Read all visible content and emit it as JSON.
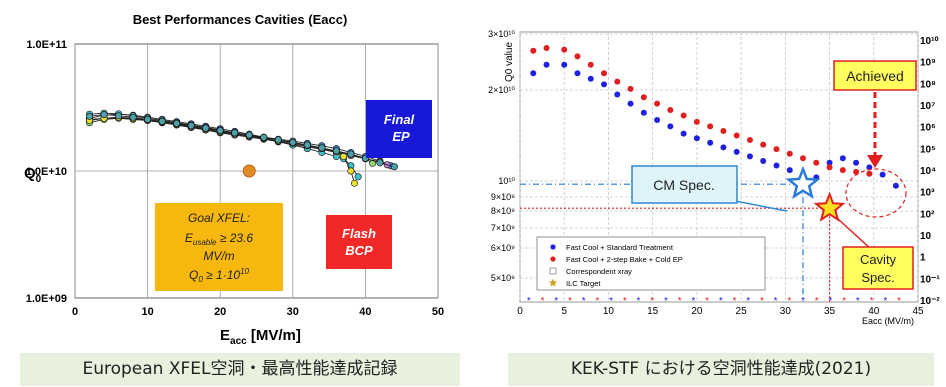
{
  "chart_data": [
    {
      "type": "scatter",
      "title": "Best Performances Cavities (Eacc)",
      "ylabel": "Q0",
      "xlabel": "Eacc [MV/m]",
      "xlim": [
        0,
        50
      ],
      "ylim": [
        1000000000.0,
        100000000000.0
      ],
      "yscale": "log",
      "grid": true,
      "x_ticks": [
        "0",
        "10",
        "20",
        "30",
        "40",
        "50"
      ],
      "y_ticks": [
        "1.0E+09",
        "1.0E+10",
        "1.0E+11"
      ],
      "series": [
        {
          "color": "#3a7fd0",
          "points": [
            [
              2,
              26000000000.0
            ],
            [
              4,
              27500000000.0
            ],
            [
              6,
              28000000000.0
            ],
            [
              8,
              27500000000.0
            ],
            [
              10,
              26500000000.0
            ],
            [
              12,
              25500000000.0
            ],
            [
              14,
              24500000000.0
            ],
            [
              16,
              23500000000.0
            ],
            [
              18,
              22500000000.0
            ],
            [
              20,
              21500000000.0
            ],
            [
              22,
              20500000000.0
            ],
            [
              24,
              19500000000.0
            ],
            [
              26,
              18500000000.0
            ],
            [
              28,
              17800000000.0
            ],
            [
              30,
              17200000000.0
            ],
            [
              32,
              16500000000.0
            ],
            [
              34,
              15800000000.0
            ],
            [
              36,
              15000000000.0
            ],
            [
              38,
              14000000000.0
            ],
            [
              40,
              13000000000.0
            ],
            [
              42,
              12000000000.0
            ],
            [
              43.5,
              11000000000.0
            ]
          ]
        },
        {
          "color": "#c080d8",
          "points": [
            [
              2,
              25500000000.0
            ],
            [
              4,
              26000000000.0
            ],
            [
              6,
              26200000000.0
            ],
            [
              8,
              25800000000.0
            ],
            [
              10,
              25000000000.0
            ],
            [
              12,
              24000000000.0
            ],
            [
              14,
              23000000000.0
            ],
            [
              16,
              22000000000.0
            ],
            [
              18,
              21000000000.0
            ],
            [
              20,
              20000000000.0
            ],
            [
              22,
              19200000000.0
            ],
            [
              24,
              18500000000.0
            ],
            [
              26,
              17800000000.0
            ],
            [
              28,
              17000000000.0
            ],
            [
              30,
              16200000000.0
            ],
            [
              32,
              15500000000.0
            ],
            [
              34,
              14800000000.0
            ],
            [
              36,
              14000000000.0
            ],
            [
              38,
              13200000000.0
            ],
            [
              40,
              12500000000.0
            ],
            [
              42,
              11800000000.0
            ],
            [
              43,
              11200000000.0
            ]
          ]
        },
        {
          "color": "#40c0c8",
          "points": [
            [
              2,
              28000000000.0
            ],
            [
              4,
              28500000000.0
            ],
            [
              6,
              28200000000.0
            ],
            [
              8,
              27200000000.0
            ],
            [
              10,
              26000000000.0
            ],
            [
              12,
              25000000000.0
            ],
            [
              14,
              24000000000.0
            ],
            [
              16,
              23000000000.0
            ],
            [
              18,
              22000000000.0
            ],
            [
              20,
              21000000000.0
            ],
            [
              22,
              20000000000.0
            ],
            [
              24,
              19000000000.0
            ],
            [
              26,
              18000000000.0
            ],
            [
              28,
              17000000000.0
            ],
            [
              30,
              16000000000.0
            ],
            [
              32,
              15000000000.0
            ],
            [
              34,
              14000000000.0
            ],
            [
              36,
              13000000000.0
            ],
            [
              37,
              12500000000.0
            ],
            [
              38,
              11000000000.0
            ],
            [
              39,
              9000000000.0
            ]
          ]
        },
        {
          "color": "#90d870",
          "points": [
            [
              2,
              24000000000.0
            ],
            [
              4,
              25500000000.0
            ],
            [
              6,
              26000000000.0
            ],
            [
              8,
              25500000000.0
            ],
            [
              10,
              25000000000.0
            ],
            [
              12,
              24200000000.0
            ],
            [
              14,
              23200000000.0
            ],
            [
              16,
              22200000000.0
            ],
            [
              18,
              21200000000.0
            ],
            [
              20,
              20200000000.0
            ],
            [
              22,
              19500000000.0
            ],
            [
              24,
              18800000000.0
            ],
            [
              26,
              18000000000.0
            ],
            [
              28,
              17200000000.0
            ],
            [
              30,
              16500000000.0
            ],
            [
              32,
              15800000000.0
            ],
            [
              34,
              15000000000.0
            ],
            [
              36,
              14200000000.0
            ],
            [
              38,
              13500000000.0
            ],
            [
              40,
              12500000000.0
            ],
            [
              41,
              11500000000.0
            ]
          ]
        },
        {
          "color": "#e8e030",
          "points": [
            [
              2,
              25000000000.0
            ],
            [
              4,
              26000000000.0
            ],
            [
              6,
              26500000000.0
            ],
            [
              8,
              26000000000.0
            ],
            [
              10,
              25200000000.0
            ],
            [
              12,
              24500000000.0
            ],
            [
              14,
              23500000000.0
            ],
            [
              16,
              22500000000.0
            ],
            [
              18,
              21500000000.0
            ],
            [
              20,
              20500000000.0
            ],
            [
              22,
              19800000000.0
            ],
            [
              24,
              19000000000.0
            ],
            [
              26,
              18200000000.0
            ],
            [
              28,
              17500000000.0
            ],
            [
              30,
              16800000000.0
            ],
            [
              32,
              16000000000.0
            ],
            [
              34,
              15200000000.0
            ],
            [
              36,
              14200000000.0
            ],
            [
              37,
              13000000000.0
            ],
            [
              38,
              10000000000.0
            ],
            [
              38.5,
              8000000000.0
            ]
          ]
        },
        {
          "color": "#4fa0a8",
          "points": [
            [
              2,
              27000000000.0
            ],
            [
              4,
              27800000000.0
            ],
            [
              6,
              27200000000.0
            ],
            [
              8,
              26500000000.0
            ],
            [
              10,
              25500000000.0
            ],
            [
              12,
              24600000000.0
            ],
            [
              14,
              23700000000.0
            ],
            [
              16,
              22800000000.0
            ],
            [
              18,
              21800000000.0
            ],
            [
              20,
              20800000000.0
            ],
            [
              22,
              20000000000.0
            ],
            [
              24,
              19200000000.0
            ],
            [
              26,
              18400000000.0
            ],
            [
              28,
              17600000000.0
            ],
            [
              30,
              16800000000.0
            ],
            [
              32,
              16000000000.0
            ],
            [
              34,
              15200000000.0
            ],
            [
              36,
              14400000000.0
            ],
            [
              38,
              13600000000.0
            ],
            [
              40,
              12600000000.0
            ],
            [
              42,
              11600000000.0
            ],
            [
              44,
              10800000000.0
            ]
          ]
        }
      ],
      "goal_point": {
        "x": 24,
        "y": 10000000000.0,
        "color": "#e08a28"
      },
      "annotations": {
        "final_ep": [
          "Final",
          "EP"
        ],
        "flash_bcp": [
          "Flash",
          "BCP"
        ],
        "goal": {
          "line1": "Goal XFEL:",
          "line2_main": "E",
          "line2_sub": "usable",
          "line2_rest": " ≥ 23.6",
          "line3": "MV/m",
          "line4_main": "Q",
          "line4_sub": "0",
          "line4_rest": " ≥ 1·10",
          "line4_sup": "10"
        }
      },
      "axis_label_left": {
        "main": "Q",
        "sub": "0"
      },
      "axis_label_bottom": {
        "main": "E",
        "sub": "acc",
        "rest": " [MV/m]"
      }
    },
    {
      "type": "scatter",
      "ylabel": "Q0 value",
      "xlabel": "Eacc (MV/m)",
      "xlim": [
        0,
        45
      ],
      "ylim": [
        4000000000.0,
        30000000000.0
      ],
      "grid": true,
      "x_ticks": [
        "0",
        "5",
        "10",
        "15",
        "20",
        "25",
        "30",
        "35",
        "40",
        "45"
      ],
      "y_ticks": [
        "3×10¹⁰",
        "2×10¹⁰",
        "10¹⁰",
        "9×10⁹",
        "8×10⁹",
        "7×10⁹",
        "6×10⁹",
        "5×10⁹"
      ],
      "y_ticks_values": [
        30000000000.0,
        20000000000.0,
        10000000000.0,
        9000000000.0,
        8000000000.0,
        7000000000.0,
        6000000000.0,
        5000000000.0
      ],
      "right_axis_ticks": [
        "10¹⁰",
        "10⁹",
        "10⁸",
        "10⁷",
        "10⁶",
        "10⁵",
        "10⁴",
        "10³",
        "10²",
        "10",
        "1",
        "10⁻¹",
        "10⁻²"
      ],
      "series": [
        {
          "name": "Fast Cool + Standard Treatment",
          "color": "#2020e0",
          "points": [
            [
              1.5,
              23000000000.0
            ],
            [
              3,
              24500000000.0
            ],
            [
              5,
              24500000000.0
            ],
            [
              6.5,
              23000000000.0
            ],
            [
              8,
              22000000000.0
            ],
            [
              9.5,
              21000000000.0
            ],
            [
              11,
              19500000000.0
            ],
            [
              12.5,
              18500000000.0
            ],
            [
              14,
              17500000000.0
            ],
            [
              15.5,
              16700000000.0
            ],
            [
              17,
              16000000000.0
            ],
            [
              18.5,
              15200000000.0
            ],
            [
              20,
              14700000000.0
            ],
            [
              21.5,
              14200000000.0
            ],
            [
              23,
              13700000000.0
            ],
            [
              24.5,
              13200000000.0
            ],
            [
              26,
              12700000000.0
            ],
            [
              27.5,
              12200000000.0
            ],
            [
              29,
              11700000000.0
            ],
            [
              30.5,
              11200000000.0
            ],
            [
              32,
              10700000000.0
            ],
            [
              33.5,
              10400000000.0
            ],
            [
              35,
              12000000000.0
            ],
            [
              36.5,
              12500000000.0
            ],
            [
              38,
              12000000000.0
            ],
            [
              39.5,
              11500000000.0
            ],
            [
              41,
              10700000000.0
            ],
            [
              42.5,
              9700000000.0
            ]
          ]
        },
        {
          "name": "Fast Cool + 2-step Bake + Cold EP",
          "color": "#e02020",
          "points": [
            [
              1.5,
              27000000000.0
            ],
            [
              3,
              27500000000.0
            ],
            [
              5,
              27200000000.0
            ],
            [
              6.5,
              26000000000.0
            ],
            [
              8,
              24500000000.0
            ],
            [
              9.5,
              23000000000.0
            ],
            [
              11,
              21500000000.0
            ],
            [
              12.5,
              20200000000.0
            ],
            [
              14,
              19200000000.0
            ],
            [
              15.5,
              18500000000.0
            ],
            [
              17,
              17800000000.0
            ],
            [
              18.5,
              17200000000.0
            ],
            [
              20,
              16500000000.0
            ],
            [
              21.5,
              16000000000.0
            ],
            [
              23,
              15500000000.0
            ],
            [
              24.5,
              15000000000.0
            ],
            [
              26,
              14500000000.0
            ],
            [
              27.5,
              14000000000.0
            ],
            [
              29,
              13500000000.0
            ],
            [
              30.5,
              13000000000.0
            ],
            [
              32,
              12500000000.0
            ],
            [
              33.5,
              12000000000.0
            ],
            [
              35,
              11500000000.0
            ],
            [
              36.5,
              11200000000.0
            ],
            [
              38,
              11000000000.0
            ],
            [
              39.5,
              10800000000.0
            ]
          ]
        }
      ],
      "legend": [
        {
          "label": "Fast Cool + Standard Treatment",
          "marker": "dot",
          "color": "#2020e0"
        },
        {
          "label": "Fast Cool + 2-step Bake + Cold EP",
          "marker": "dot",
          "color": "#e02020"
        },
        {
          "label": "Correspondent xray",
          "marker": "square",
          "color": "#888888"
        },
        {
          "label": "ILC Target",
          "marker": "star",
          "color": "#d0a020"
        }
      ],
      "cm_spec": {
        "label": "CM Spec.",
        "x": 32,
        "y": 9800000000.0
      },
      "cavity_spec": {
        "label": [
          "Cavity",
          "Spec."
        ],
        "x": 35,
        "y": 8200000000.0
      },
      "achieved": {
        "label": "Achieved"
      }
    }
  ],
  "captions": {
    "left": "European XFEL空洞・最高性能達成記録",
    "right": "KEK-STF における空洞性能達成(2021)"
  }
}
